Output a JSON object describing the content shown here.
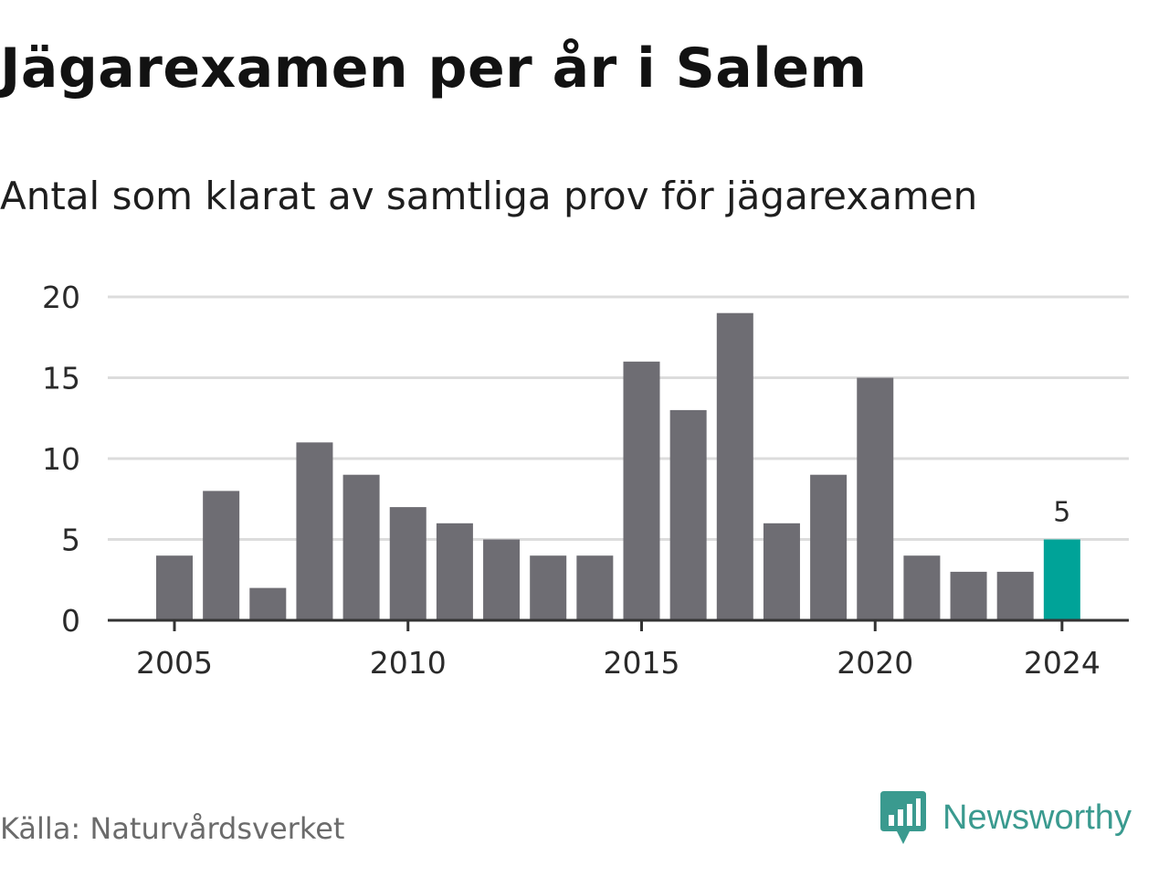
{
  "header": {
    "title": "Jägarexamen per år i Salem",
    "subtitle": "Antal som klarat av samtliga prov för jägarexamen"
  },
  "footer": {
    "source": "Källa: Naturvårdsverket",
    "brand": "Newsworthy",
    "brand_icon": "newsworthy-logo-icon"
  },
  "colors": {
    "bar": "#6e6d73",
    "highlight": "#00a398",
    "grid": "#dcdcdc",
    "axis": "#333333",
    "brand": "#3a9a8f"
  },
  "chart_data": {
    "type": "bar",
    "categories": [
      "2005",
      "2006",
      "2007",
      "2008",
      "2009",
      "2010",
      "2011",
      "2012",
      "2013",
      "2014",
      "2015",
      "2016",
      "2017",
      "2018",
      "2019",
      "2020",
      "2021",
      "2022",
      "2023",
      "2024"
    ],
    "values": [
      4,
      8,
      2,
      11,
      9,
      7,
      6,
      5,
      4,
      4,
      16,
      13,
      19,
      6,
      9,
      15,
      4,
      3,
      3,
      5
    ],
    "highlight": "2024",
    "x_tick_labels": [
      "2005",
      "2010",
      "2015",
      "2020",
      "2024"
    ],
    "y_ticks": [
      0,
      5,
      10,
      15,
      20
    ],
    "ylim": [
      0,
      20
    ],
    "data_labels": [
      {
        "category": "2024",
        "text": "5"
      }
    ],
    "grid": true,
    "legend": "none"
  }
}
